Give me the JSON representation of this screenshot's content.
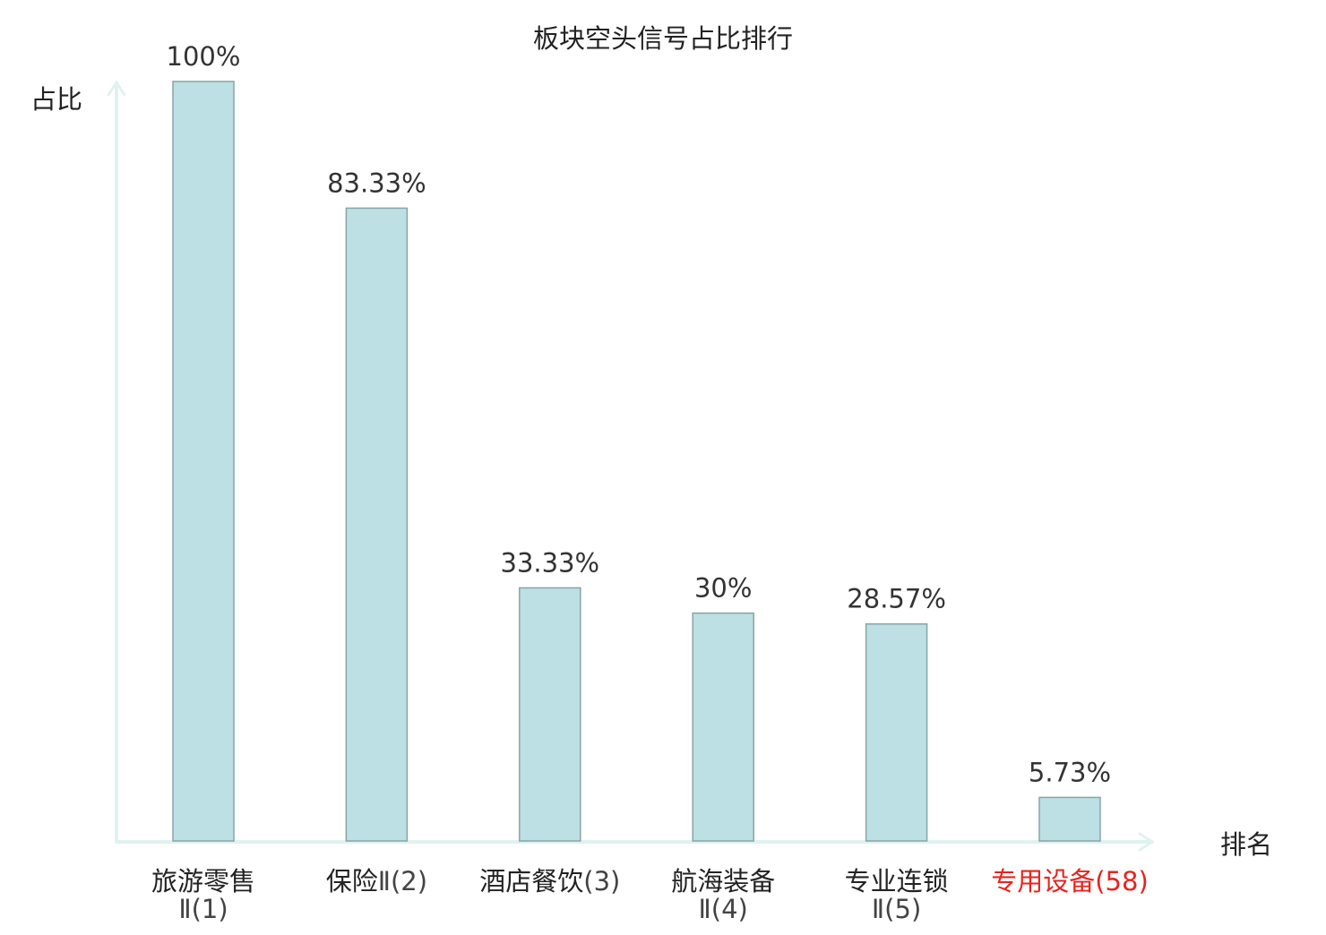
{
  "chart_data": {
    "type": "bar",
    "title": "板块空头信号占比排行",
    "ylabel": "占比",
    "xlabel": "排名",
    "ylim": [
      0,
      100
    ],
    "grid": false,
    "categories": [
      {
        "name": "旅游零售",
        "rank": "Ⅱ(1)",
        "highlight": false
      },
      {
        "name": "保险",
        "rank": "Ⅱ(2)",
        "highlight": false
      },
      {
        "name": "酒店餐饮",
        "rank": "(3)",
        "highlight": false
      },
      {
        "name": "航海装备",
        "rank": "Ⅱ(4)",
        "highlight": false
      },
      {
        "name": "专业连锁",
        "rank": "Ⅱ(5)",
        "highlight": false
      },
      {
        "name": "专用设备",
        "rank": "(58)",
        "highlight": true
      }
    ],
    "values": [
      100,
      83.33,
      33.33,
      30,
      28.57,
      5.73
    ],
    "value_labels": [
      "100%",
      "83.33%",
      "33.33%",
      "30%",
      "28.57%",
      "5.73%"
    ],
    "colors": {
      "bar_fill": "#bce0e3",
      "bar_stroke": "#88a4a6",
      "axis": "#e0f2f0",
      "text": "#333333",
      "highlight": "#e8231f"
    }
  }
}
